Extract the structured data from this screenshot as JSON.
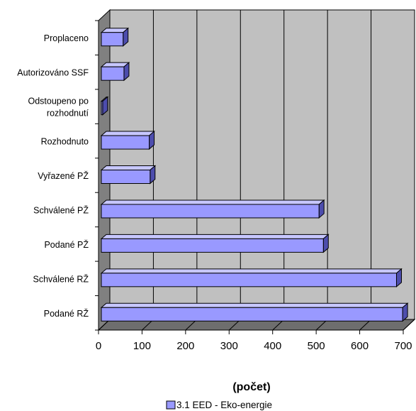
{
  "chart_data": {
    "type": "bar",
    "orientation": "horizontal",
    "three_d": true,
    "categories": [
      "Proplaceno",
      "Autorizováno SSF",
      "Odstoupeno po rozhodnutí",
      "Rozhodnuto",
      "Vyřazené PŽ",
      "Schválené PŽ",
      "Podané PŽ",
      "Schválené RŽ",
      "Podané RŽ"
    ],
    "category_lines": [
      [
        "Proplaceno"
      ],
      [
        "Autorizováno SSF"
      ],
      [
        "Odstoupeno po",
        "rozhodnutí"
      ],
      [
        "Rozhodnuto"
      ],
      [
        "Vyřazené PŽ"
      ],
      [
        "Schválené PŽ"
      ],
      [
        "Podané PŽ"
      ],
      [
        "Schválené RŽ"
      ],
      [
        "Podané RŽ"
      ]
    ],
    "series": [
      {
        "name": "3.1 EED - Eko-energie",
        "values": [
          50,
          52,
          3,
          110,
          112,
          500,
          510,
          678,
          692
        ]
      }
    ],
    "xlabel": "(počet)",
    "xlim": [
      0,
      700
    ],
    "xticks": [
      "0",
      "100",
      "200",
      "300",
      "400",
      "500",
      "600",
      "700"
    ],
    "grid": true,
    "legend": "bottom",
    "colors": {
      "bar_front": "#9999ff",
      "bar_top": "#c7c7ff",
      "bar_side": "#4d4dad",
      "plot_back": "#c0c0c0",
      "left_wall": "#808080",
      "floor": "#6e6e6e",
      "grid": "#000000"
    }
  }
}
